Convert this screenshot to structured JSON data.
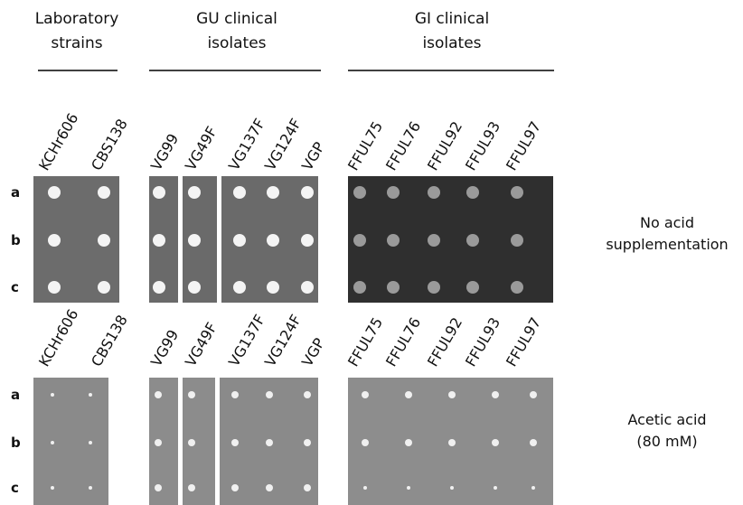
{
  "groups": [
    {
      "title": [
        "Laboratory",
        "strains"
      ]
    },
    {
      "title": [
        "GU clinical",
        "isolates"
      ]
    },
    {
      "title": [
        "GI clinical",
        "isolates"
      ]
    }
  ],
  "panels": [
    {
      "strains": [
        "KCHr606",
        "CBS138",
        "VG99",
        "VG49F",
        "VG137F",
        "VG124F",
        "VGP",
        "FFUL75",
        "FFUL76",
        "FFUL92",
        "FFUL93",
        "FFUL97"
      ],
      "rows": [
        "a",
        "b",
        "c"
      ],
      "condition": [
        "No acid",
        "supplementation"
      ]
    },
    {
      "strains": [
        "KCHr606",
        "CBS138",
        "VG99",
        "VG49F",
        "VG137F",
        "VG124F",
        "VGP",
        "FFUL75",
        "FFUL76",
        "FFUL92",
        "FFUL93",
        "FFUL97"
      ],
      "rows": [
        "a",
        "b",
        "c"
      ],
      "condition": [
        "Acetic acid",
        "(80 mM)"
      ]
    }
  ]
}
